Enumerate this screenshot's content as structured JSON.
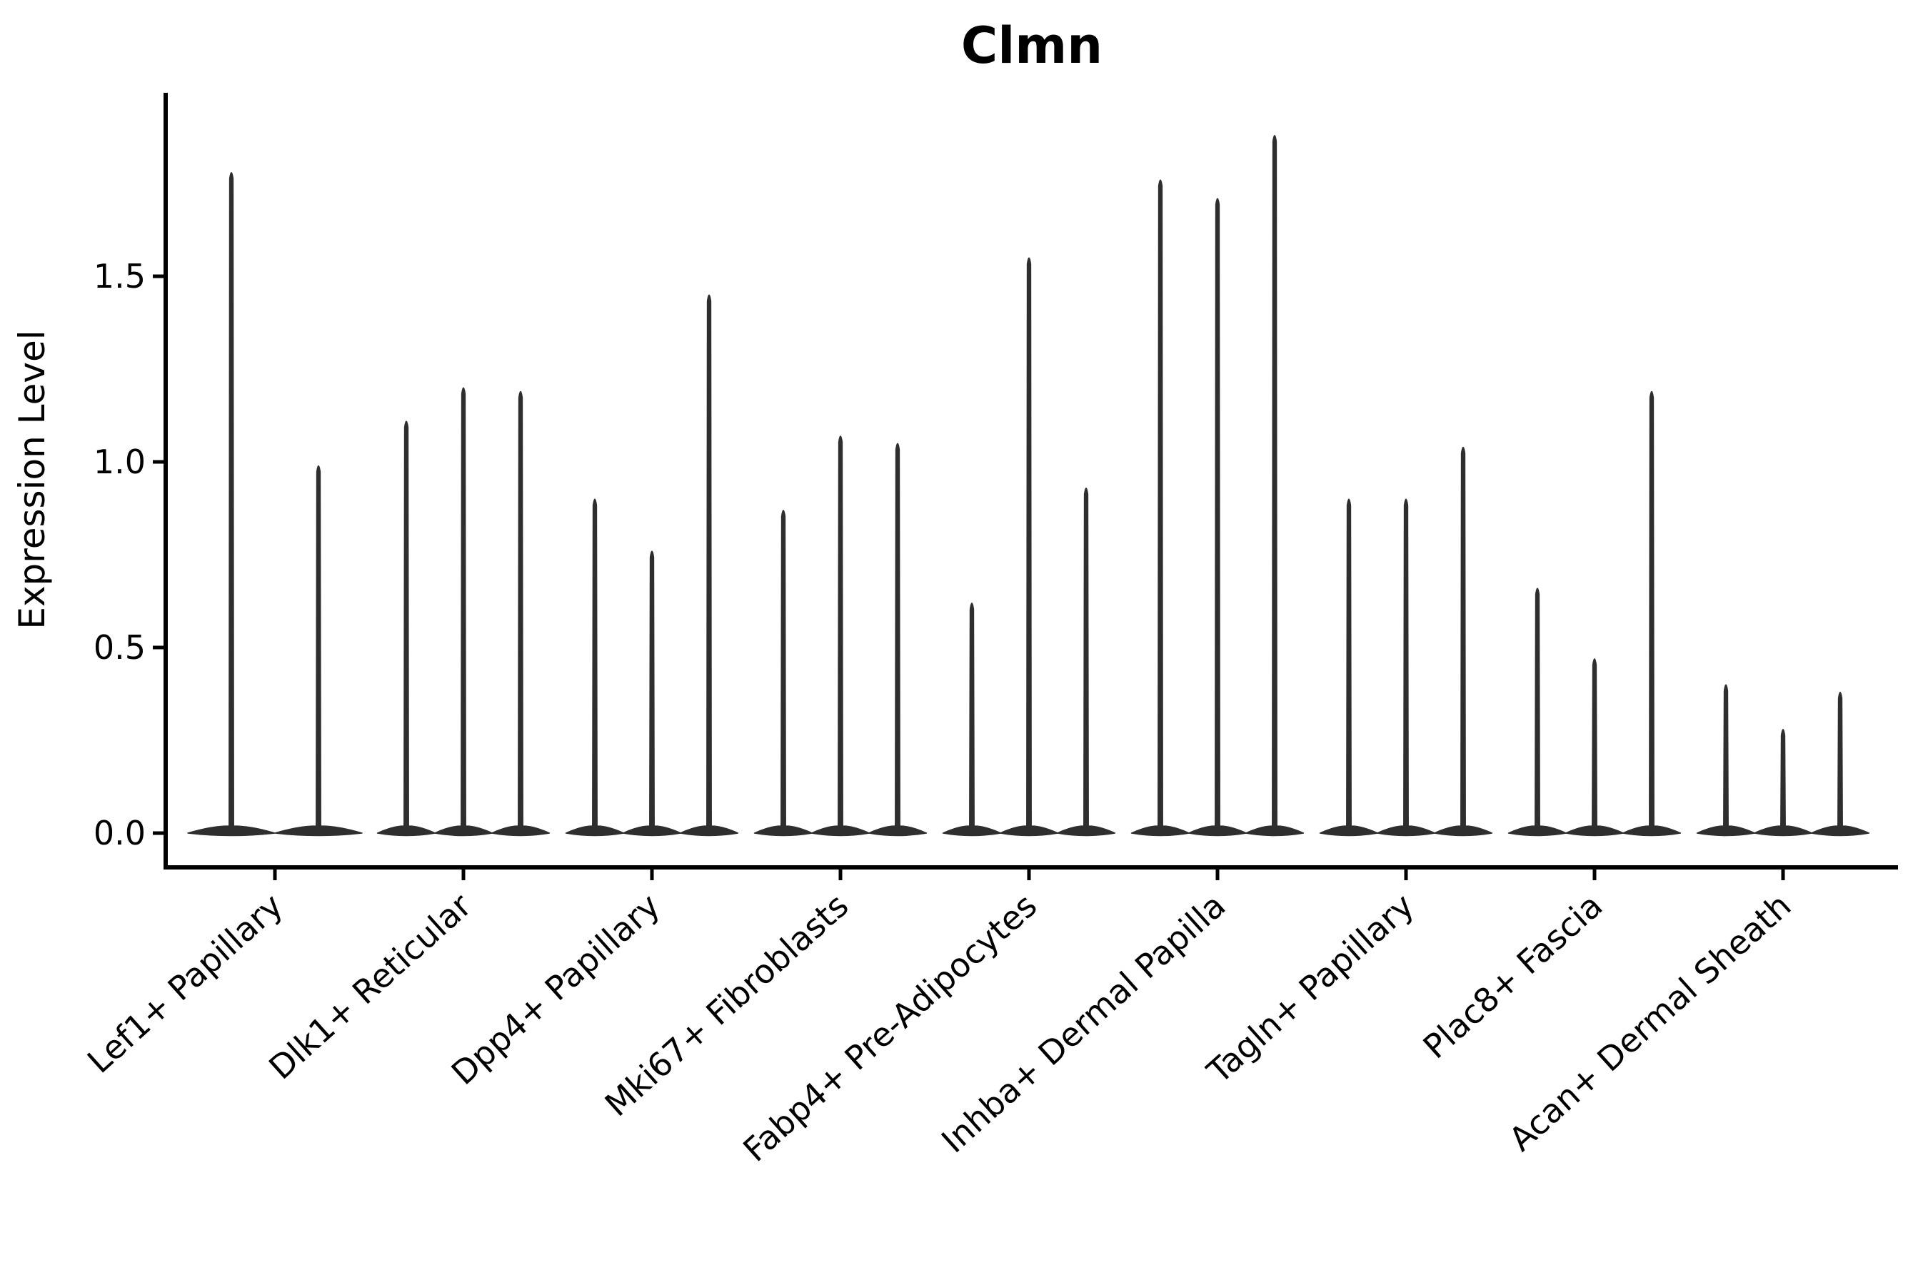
{
  "figure": {
    "background": "#ffffff"
  },
  "chart_data": {
    "type": "violin",
    "title": "Clmn",
    "xlabel": "",
    "ylabel": "Expression Level",
    "grid": false,
    "legend_position": "none",
    "ytick_labels": [
      "0.0",
      "0.5",
      "1.0",
      "1.5"
    ],
    "ytick_values": [
      0.0,
      0.5,
      1.0,
      1.5
    ],
    "ylim": [
      -0.09,
      1.99
    ],
    "categories": [
      "Lef1+ Papillary",
      "Dlk1+ Reticular",
      "Dpp4+ Papillary",
      "Mki67+ Fibroblasts",
      "Fabp4+ Pre-Adipocytes",
      "Inhba+ Dermal Papilla",
      "Tagln+ Papillary",
      "Plac8+ Fascia",
      "Acan+ Dermal Sheath"
    ],
    "groups": [
      {
        "category": "Lef1+ Papillary",
        "violin_maxima": [
          1.79,
          1.0
        ]
      },
      {
        "category": "Dlk1+ Reticular",
        "violin_maxima": [
          1.12,
          1.21,
          1.2
        ]
      },
      {
        "category": "Dpp4+ Papillary",
        "violin_maxima": [
          0.91,
          0.77,
          1.46
        ]
      },
      {
        "category": "Mki67+ Fibroblasts",
        "violin_maxima": [
          0.88,
          1.08,
          1.06
        ]
      },
      {
        "category": "Fabp4+ Pre-Adipocytes",
        "violin_maxima": [
          0.63,
          1.56,
          0.94
        ]
      },
      {
        "category": "Inhba+ Dermal Papilla",
        "violin_maxima": [
          1.77,
          1.72,
          1.89
        ]
      },
      {
        "category": "Tagln+ Papillary",
        "violin_maxima": [
          0.91,
          0.91,
          1.05
        ]
      },
      {
        "category": "Plac8+ Fascia",
        "violin_maxima": [
          0.67,
          0.48,
          1.2
        ]
      },
      {
        "category": "Acan+ Dermal Sheath",
        "violin_maxima": [
          0.41,
          0.29,
          0.39
        ]
      }
    ],
    "colors": {
      "violin": "#2e2e2e",
      "axis": "#000000",
      "text": "#000000",
      "background": "#ffffff"
    }
  }
}
